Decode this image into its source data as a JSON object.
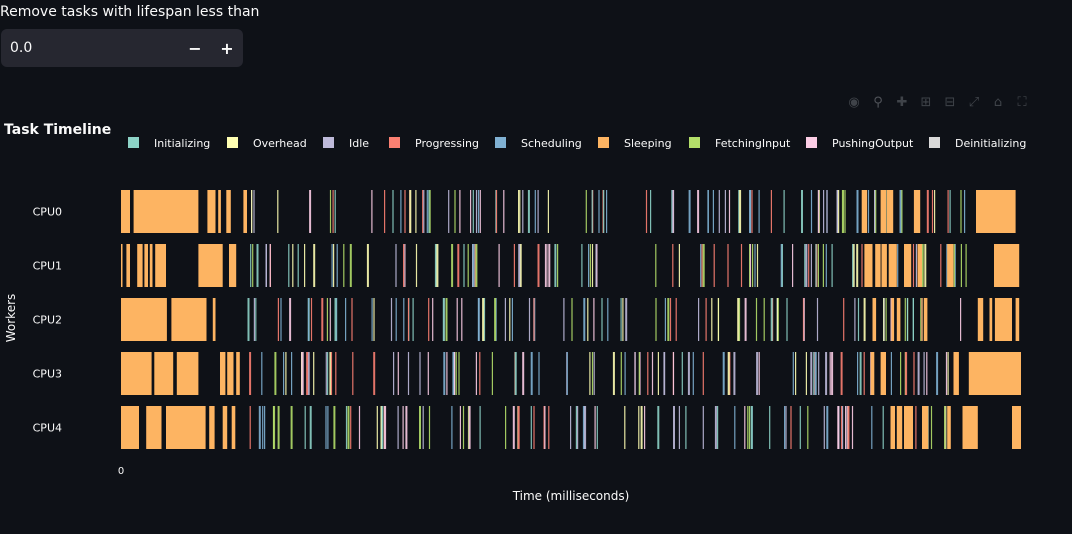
{
  "filter": {
    "label": "Remove tasks with lifespan less than",
    "value": "0.0",
    "minus": "−",
    "plus": "+"
  },
  "toolbar": {
    "icons": [
      "camera-icon",
      "zoom-icon",
      "pan-icon",
      "zoom-in-icon",
      "zoom-out-icon",
      "autoscale-icon",
      "reset-axes-icon",
      "fullscreen-icon"
    ]
  },
  "chart_data": {
    "type": "timeline",
    "title": "Task Timeline",
    "xlabel": "Time (milliseconds)",
    "ylabel": "Workers",
    "x_ticks": [
      "0"
    ],
    "xlim": [
      0,
      1000
    ],
    "legend_position": "top",
    "legend": [
      {
        "name": "Initializing",
        "color": "#8dd3c7"
      },
      {
        "name": "Overhead",
        "color": "#ffffb3"
      },
      {
        "name": "Idle",
        "color": "#bebada"
      },
      {
        "name": "Progressing",
        "color": "#fb8072"
      },
      {
        "name": "Scheduling",
        "color": "#80b1d3"
      },
      {
        "name": "Sleeping",
        "color": "#fdb462"
      },
      {
        "name": "FetchingInput",
        "color": "#b3de69"
      },
      {
        "name": "PushingOutput",
        "color": "#fccde5"
      },
      {
        "name": "Deinitializing",
        "color": "#d9d9d9"
      }
    ],
    "workers": [
      {
        "name": "CPU0",
        "sleep": [
          [
            0,
            10
          ],
          [
            14,
            86
          ],
          [
            96,
            105
          ],
          [
            108,
            111
          ],
          [
            117,
            122
          ],
          [
            136,
            140
          ],
          [
            823,
            829
          ],
          [
            844,
            850
          ],
          [
            851,
            858
          ],
          [
            881,
            888
          ],
          [
            950,
            994
          ]
        ]
      },
      {
        "name": "CPU1",
        "sleep": [
          [
            0,
            1
          ],
          [
            6,
            10
          ],
          [
            18,
            24
          ],
          [
            26,
            30
          ],
          [
            32,
            35
          ],
          [
            38,
            50
          ],
          [
            86,
            113
          ],
          [
            120,
            128
          ],
          [
            826,
            835
          ],
          [
            838,
            844
          ],
          [
            845,
            851
          ],
          [
            853,
            862
          ],
          [
            870,
            878
          ],
          [
            885,
            890
          ],
          [
            918,
            925
          ],
          [
            970,
            998
          ]
        ]
      },
      {
        "name": "CPU2",
        "sleep": [
          [
            0,
            51
          ],
          [
            56,
            95
          ],
          [
            102,
            105
          ],
          [
            835,
            839
          ],
          [
            856,
            859
          ],
          [
            862,
            866
          ],
          [
            892,
            896
          ],
          [
            952,
            958
          ],
          [
            965,
            968
          ],
          [
            971,
            990
          ],
          [
            994,
            998
          ]
        ]
      },
      {
        "name": "CPU3",
        "sleep": [
          [
            0,
            34
          ],
          [
            37,
            58
          ],
          [
            62,
            86
          ],
          [
            110,
            116
          ],
          [
            118,
            125
          ],
          [
            128,
            132
          ],
          [
            833,
            837
          ],
          [
            844,
            850
          ],
          [
            925,
            931
          ],
          [
            942,
            1000
          ]
        ]
      },
      {
        "name": "CPU4",
        "sleep": [
          [
            0,
            20
          ],
          [
            28,
            45
          ],
          [
            50,
            94
          ],
          [
            98,
            104
          ],
          [
            113,
            118
          ],
          [
            123,
            127
          ],
          [
            855,
            860
          ],
          [
            862,
            868
          ],
          [
            870,
            880
          ],
          [
            890,
            897
          ],
          [
            918,
            922
          ],
          [
            935,
            952
          ],
          [
            990,
            1000
          ]
        ]
      }
    ]
  }
}
